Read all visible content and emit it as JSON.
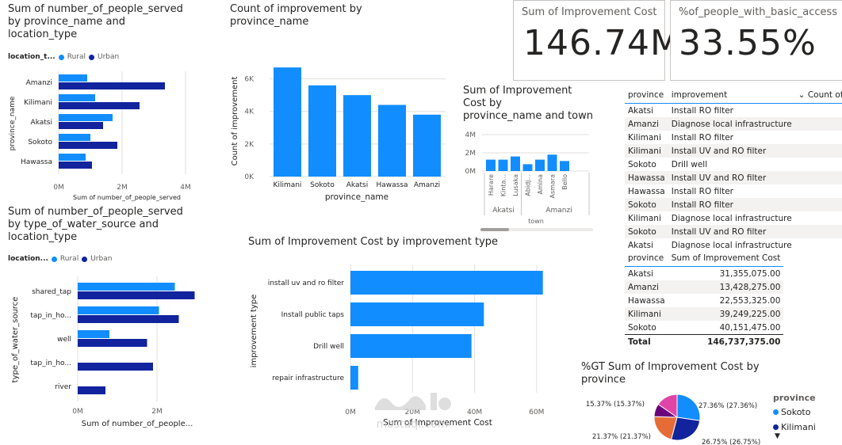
{
  "colors": {
    "rural": "#118dff",
    "urban": "#12239e",
    "bar": "#118dff",
    "pie": [
      "#118dff",
      "#12239e",
      "#e66c37",
      "#6b007b",
      "#e044a7"
    ]
  },
  "panel_people_province": {
    "title_lines": [
      "Sum of number_of_people_served",
      "by province_name and",
      "location_type"
    ],
    "legend_title": "location_t...",
    "legend_items": [
      "Rural",
      "Urban"
    ],
    "y_label": "province_name",
    "x_label": "Sum of number_of_people_served",
    "x_ticks": [
      "0M",
      "2M",
      "4M"
    ]
  },
  "panel_count": {
    "title_lines": [
      "Count of improvement by",
      "province_name"
    ],
    "y_label": "Count of improvement",
    "x_label": "province_name",
    "y_ticks": [
      "0K",
      "2K",
      "4K",
      "6K"
    ]
  },
  "panel_town": {
    "title_lines": [
      "Sum of Improvement",
      "Cost by",
      "province_name and town"
    ],
    "y_ticks": [
      "0M",
      "2M",
      "4M"
    ],
    "groups": [
      "Akatsi",
      "Amanzi"
    ],
    "x_label": "town"
  },
  "card_cost": {
    "label": "Sum of Improvement Cost",
    "value": "146.74M"
  },
  "card_access": {
    "label": "%of_people_with_basic_access",
    "value": "33.55%"
  },
  "table_improvements": {
    "headers": [
      "province",
      "improvement",
      "Count of Impr"
    ],
    "rows": [
      [
        "Akatsi",
        "Install RO filter"
      ],
      [
        "Amanzi",
        "Diagnose local infrastructure"
      ],
      [
        "Kilimani",
        "Install RO filter"
      ],
      [
        "Kilimani",
        "Install UV and RO filter"
      ],
      [
        "Sokoto",
        "Drill well"
      ],
      [
        "Hawassa",
        "Install UV and RO filter"
      ],
      [
        "Hawassa",
        "Install RO filter"
      ],
      [
        "Sokoto",
        "Install RO filter"
      ],
      [
        "Kilimani",
        "Diagnose local infrastructure"
      ],
      [
        "Sokoto",
        "Install UV and RO filter"
      ],
      [
        "Akatsi",
        "Diagnose local infrastructure"
      ]
    ]
  },
  "table_cost": {
    "headers": [
      "province",
      "Sum of Improvement Cost"
    ],
    "rows": [
      [
        "Akatsi",
        "31,355,075.00"
      ],
      [
        "Amanzi",
        "13,428,275.00"
      ],
      [
        "Hawassa",
        "22,553,325.00"
      ],
      [
        "Kilimani",
        "39,249,225.00"
      ],
      [
        "Sokoto",
        "40,151,475.00"
      ]
    ],
    "total_label": "Total",
    "total_value": "146,737,375.00"
  },
  "panel_people_source": {
    "title_lines": [
      "Sum of number_of_people_served",
      "by type_of_water_source and",
      "location_type"
    ],
    "legend_title": "location...",
    "legend_items": [
      "Rural",
      "Urban"
    ],
    "y_label": "type_of_water_source",
    "x_label": "Sum of number_of_people...",
    "x_ticks": [
      "0M",
      "2M"
    ]
  },
  "panel_improvement_type": {
    "title": "Sum of Improvement Cost by improvement type",
    "y_label": "improvement type",
    "x_label": "Sum of Improvement Cost",
    "x_ticks": [
      "0M",
      "20M",
      "40M",
      "60M"
    ]
  },
  "panel_pie": {
    "title_lines": [
      "%GT Sum of Improvement Cost by",
      "province"
    ],
    "legend_title": "province",
    "legend_items": [
      "Sokoto",
      "Kilimani"
    ]
  },
  "watermark": {
    "text": "mostaql.com"
  },
  "chart_data": [
    {
      "type": "bar",
      "orientation": "horizontal",
      "categories": [
        "Amanzi",
        "Kilimani",
        "Akatsi",
        "Sokoto",
        "Hawassa"
      ],
      "series": [
        {
          "name": "Rural",
          "values": [
            0.9,
            1.15,
            1.7,
            1.0,
            0.85
          ]
        },
        {
          "name": "Urban",
          "values": [
            3.35,
            2.55,
            1.4,
            1.85,
            1.05
          ]
        }
      ],
      "xlim": [
        0,
        4.4
      ],
      "unit": "M"
    },
    {
      "type": "bar",
      "categories": [
        "Kilimani",
        "Sokoto",
        "Akatsi",
        "Hawassa",
        "Amanzi"
      ],
      "values": [
        6700,
        5600,
        5000,
        4400,
        3800
      ],
      "ylim": [
        0,
        7000
      ]
    },
    {
      "type": "bar",
      "categories": [
        "Harare",
        "Kinta...",
        "Lusaka",
        "Abidj...",
        "Amina",
        "Asmara",
        "Bello"
      ],
      "values": [
        1.25,
        1.25,
        1.6,
        0.75,
        1.25,
        1.8,
        1.1
      ],
      "ylim": [
        0,
        4
      ],
      "unit": "M"
    },
    {
      "type": "bar",
      "orientation": "horizontal",
      "categories": [
        "shared_tap",
        "tap_in_ho...",
        "well",
        "tap_in_ho...",
        "river"
      ],
      "series": [
        {
          "name": "Rural",
          "values": [
            2.45,
            2.05,
            0.8,
            0,
            0
          ]
        },
        {
          "name": "Urban",
          "values": [
            2.95,
            2.55,
            1.75,
            1.9,
            0.7
          ]
        }
      ],
      "xlim": [
        0,
        3.0
      ],
      "unit": "M"
    },
    {
      "type": "bar",
      "orientation": "horizontal",
      "categories": [
        "install uv and ro filter",
        "Install public taps",
        "Drill well",
        "repair infrastructure"
      ],
      "values": [
        62,
        43,
        39,
        2.5
      ],
      "xlim": [
        0,
        70
      ],
      "unit": "M"
    },
    {
      "type": "pie",
      "categories": [
        "Sokoto",
        "Kilimani",
        "Akatsi",
        "Amanzi",
        "Hawassa"
      ],
      "values": [
        27.36,
        26.75,
        21.37,
        9.15,
        15.37
      ],
      "labels": [
        "27.36% (27.36%)",
        "26.75% (26.75%)",
        "21.37% (21.37%)",
        "",
        "15.37% (15.37%)"
      ]
    }
  ]
}
